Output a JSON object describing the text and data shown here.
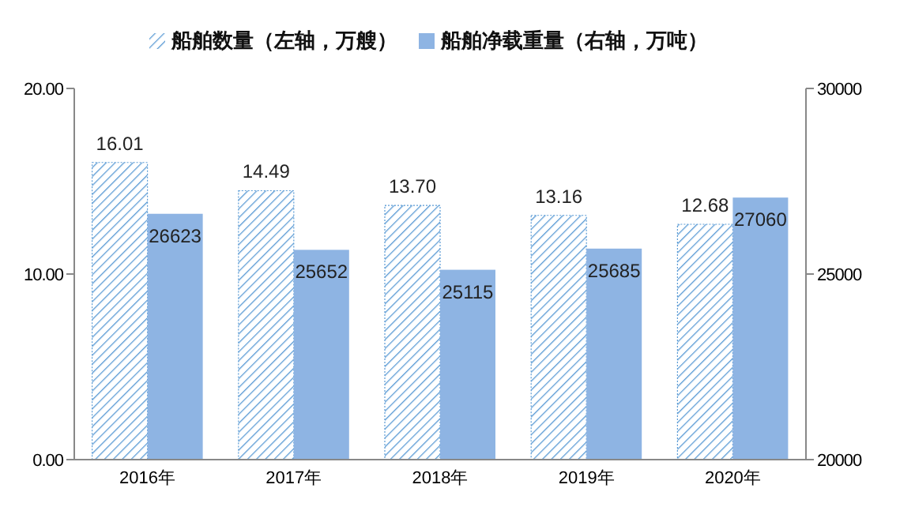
{
  "chart_data": {
    "type": "bar",
    "categories": [
      "2016年",
      "2017年",
      "2018年",
      "2019年",
      "2020年"
    ],
    "series": [
      {
        "name": "船舶数量（左轴，万艘）",
        "color": "#5b9bd5",
        "values": [
          16.01,
          14.49,
          13.7,
          13.16,
          12.68
        ],
        "value_labels": [
          "16.01",
          "14.49",
          "13.70",
          "13.16",
          "12.68"
        ]
      },
      {
        "name": "船舶净载重量（右轴，万吨）",
        "color": "#8eb4e3",
        "axis": "y2",
        "values": [
          26623,
          25652,
          25115,
          25685,
          27060
        ],
        "value_labels": [
          "26623",
          "25652",
          "25115",
          "25685",
          "27060"
        ]
      }
    ],
    "ylim": [
      0,
      20
    ],
    "yticks": [
      {
        "value": 0,
        "label": "0.00"
      },
      {
        "value": 10,
        "label": "10.00"
      },
      {
        "value": 20,
        "label": "20.00"
      }
    ],
    "y2lim": [
      20000,
      30000
    ],
    "y2ticks": [
      20000,
      25000,
      30000
    ],
    "grid": false,
    "legend": "top"
  }
}
